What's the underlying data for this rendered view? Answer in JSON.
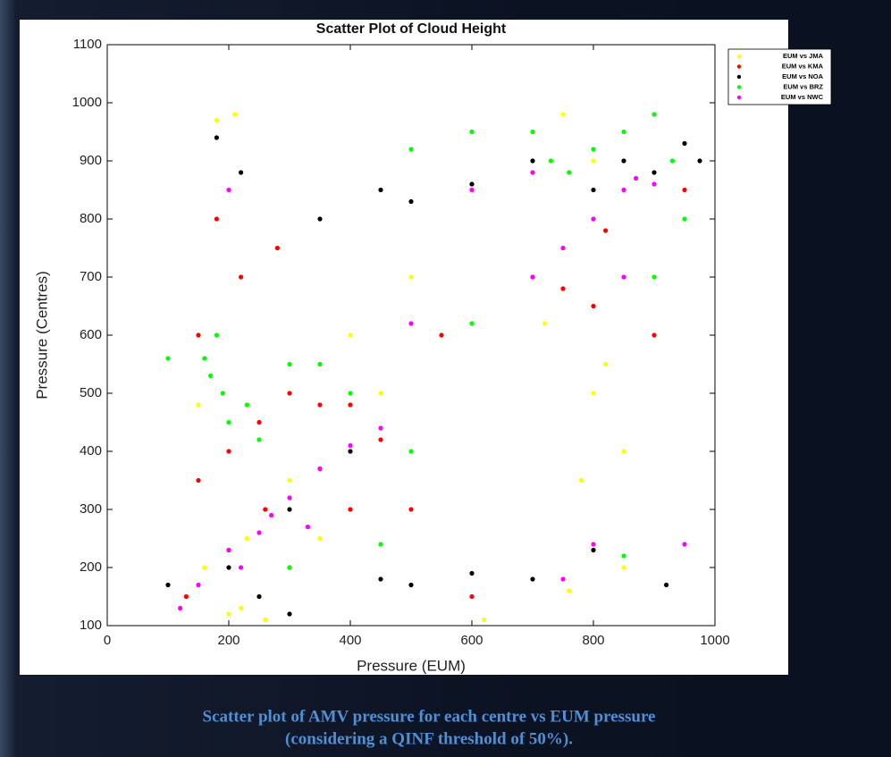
{
  "chart_data": {
    "type": "scatter",
    "title": "Scatter Plot of Cloud Height",
    "x_label": "Pressure (EUM)",
    "y_label": "Pressure (Centres)",
    "xlim": [
      0,
      1000
    ],
    "xticks": [
      0,
      200,
      400,
      600,
      800,
      1000
    ],
    "ylim": [
      100,
      1100
    ],
    "yticks": [
      100,
      200,
      300,
      400,
      500,
      600,
      700,
      800,
      900,
      1000,
      1100
    ],
    "legend": "outside upper right",
    "series": [
      {
        "name": "EUM vs JMA",
        "color": "#ffff00",
        "x": [
          200,
          220,
          250,
          180,
          210,
          150,
          300,
          400,
          500,
          700,
          750,
          800,
          800,
          820,
          850,
          850,
          780,
          620,
          260,
          350,
          450,
          160,
          230,
          720,
          760
        ],
        "values": [
          120,
          130,
          150,
          970,
          980,
          480,
          350,
          600,
          700,
          950,
          980,
          900,
          500,
          550,
          400,
          200,
          350,
          110,
          110,
          250,
          500,
          200,
          250,
          620,
          160
        ]
      },
      {
        "name": "EUM vs KMA",
        "color": "#ff0000",
        "x": [
          150,
          200,
          250,
          300,
          350,
          400,
          180,
          220,
          280,
          450,
          500,
          600,
          700,
          750,
          800,
          820,
          130,
          200,
          950,
          150,
          300,
          550,
          900,
          260,
          400
        ],
        "values": [
          350,
          400,
          450,
          500,
          480,
          480,
          800,
          700,
          750,
          420,
          300,
          150,
          700,
          680,
          650,
          780,
          150,
          230,
          850,
          600,
          200,
          600,
          600,
          300,
          300
        ]
      },
      {
        "name": " EUM vs NOA",
        "color": "#000000",
        "x": [
          200,
          250,
          300,
          350,
          400,
          180,
          220,
          350,
          450,
          500,
          600,
          700,
          800,
          850,
          900,
          950,
          920,
          600,
          500,
          450,
          300,
          100,
          700,
          800,
          975
        ],
        "values": [
          200,
          150,
          300,
          370,
          400,
          940,
          880,
          800,
          850,
          830,
          860,
          900,
          850,
          900,
          880,
          930,
          170,
          190,
          170,
          180,
          120,
          170,
          180,
          230,
          900
        ]
      },
      {
        "name": "EUM vs BRZ",
        "color": "#00ff00",
        "x": [
          170,
          190,
          200,
          160,
          230,
          250,
          180,
          300,
          350,
          400,
          500,
          600,
          700,
          730,
          760,
          800,
          850,
          900,
          900,
          930,
          950,
          300,
          500,
          600,
          100,
          450,
          850
        ],
        "values": [
          530,
          500,
          450,
          560,
          480,
          420,
          600,
          550,
          550,
          500,
          920,
          950,
          950,
          900,
          880,
          920,
          950,
          980,
          700,
          900,
          800,
          200,
          400,
          620,
          560,
          240,
          220
        ]
      },
      {
        "name": "EUM vs NWC",
        "color": "#ff00ff",
        "x": [
          120,
          150,
          200,
          250,
          300,
          350,
          400,
          450,
          700,
          750,
          800,
          850,
          870,
          900,
          220,
          270,
          600,
          200,
          500,
          750,
          800,
          950,
          700,
          330,
          850
        ],
        "values": [
          130,
          170,
          230,
          260,
          320,
          370,
          410,
          440,
          700,
          750,
          800,
          850,
          870,
          860,
          200,
          290,
          850,
          850,
          620,
          180,
          240,
          240,
          880,
          270,
          700
        ]
      }
    ]
  },
  "caption": [
    "Scatter plot of AMV pressure for each centre vs EUM pressure",
    "(considering a QINF threshold of 50%)."
  ]
}
